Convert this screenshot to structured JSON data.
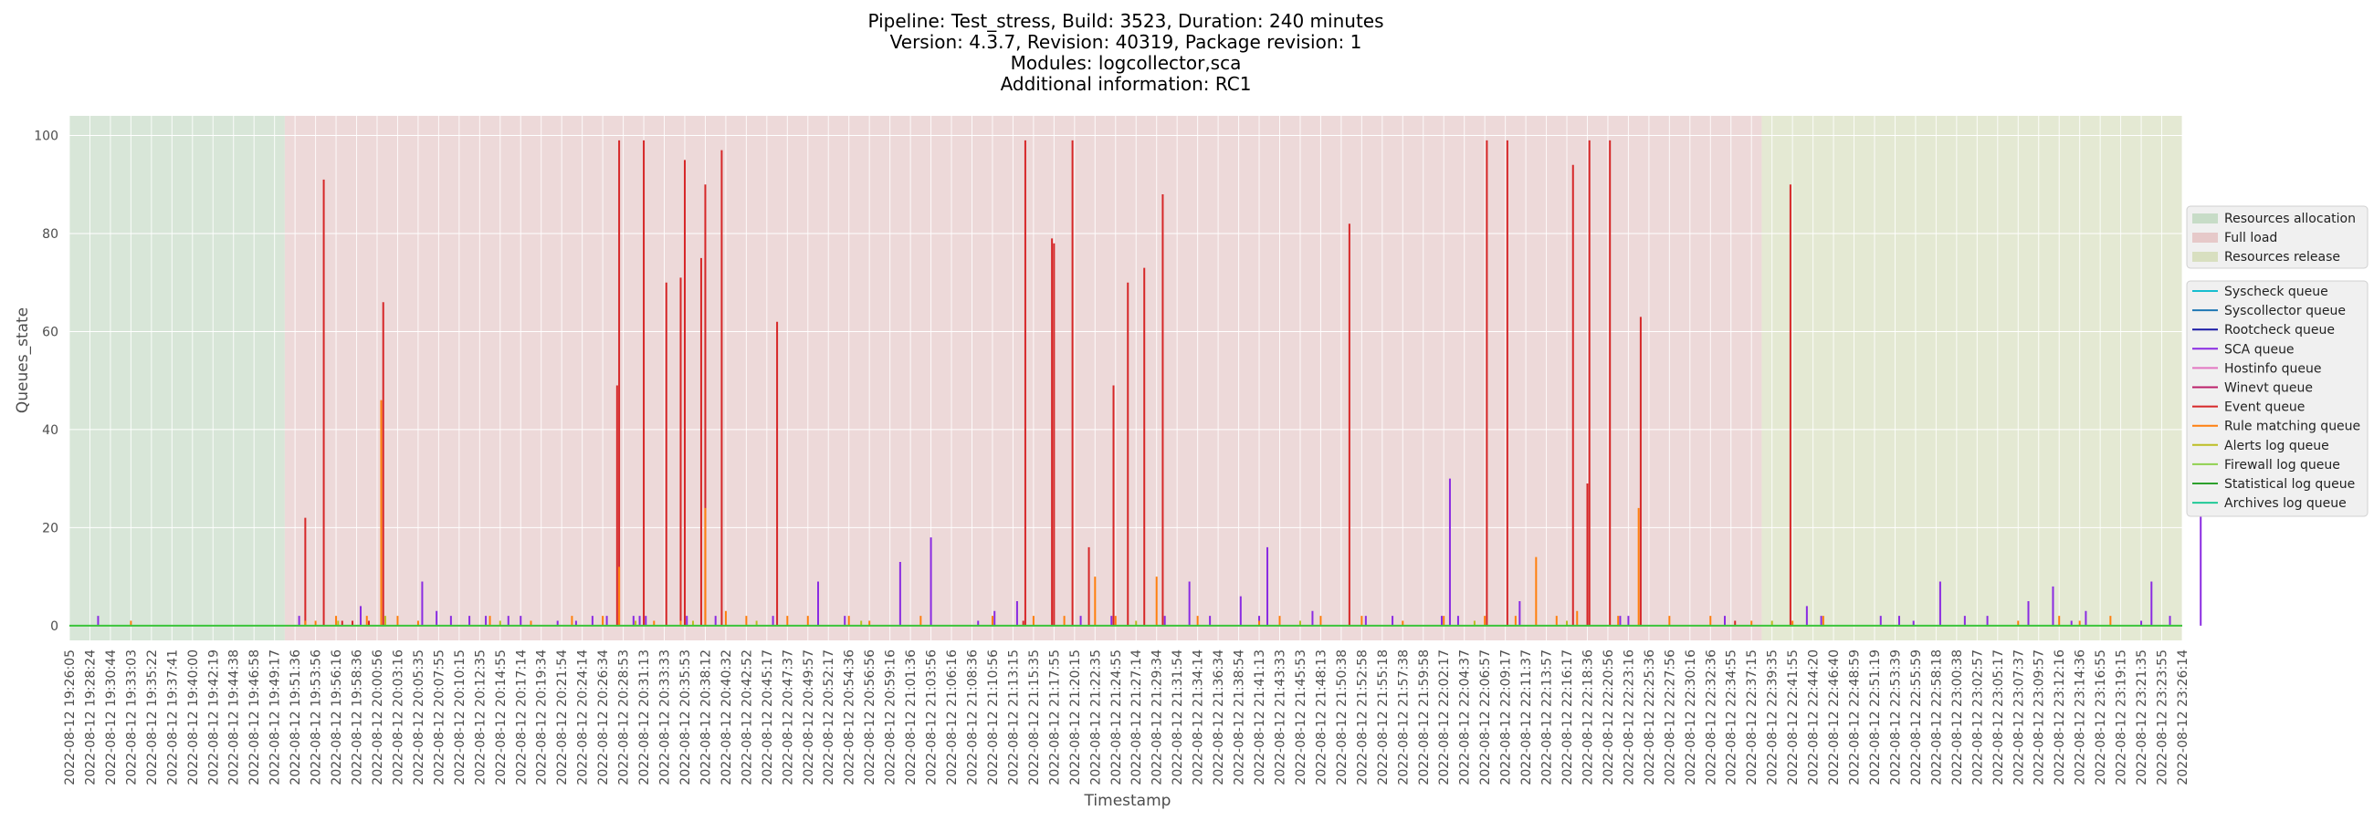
{
  "chart_data": {
    "type": "line",
    "title_lines": [
      "Pipeline: Test_stress, Build: 3523, Duration: 240 minutes",
      "Version: 4.3.7, Revision: 40319, Package revision: 1",
      "Modules: logcollector,sca",
      "Additional information: RC1"
    ],
    "xlabel": "Timestamp",
    "ylabel": "Queues_state",
    "ylim": [
      -3,
      104
    ],
    "yticks": [
      0,
      20,
      40,
      60,
      80,
      100
    ],
    "grid": true,
    "x_ticks": [
      "2022-08-12 19:26:05",
      "2022-08-12 19:28:24",
      "2022-08-12 19:30:44",
      "2022-08-12 19:33:03",
      "2022-08-12 19:35:22",
      "2022-08-12 19:37:41",
      "2022-08-12 19:40:00",
      "2022-08-12 19:42:19",
      "2022-08-12 19:44:38",
      "2022-08-12 19:46:58",
      "2022-08-12 19:49:17",
      "2022-08-12 19:51:36",
      "2022-08-12 19:53:56",
      "2022-08-12 19:56:16",
      "2022-08-12 19:58:36",
      "2022-08-12 20:00:56",
      "2022-08-12 20:03:16",
      "2022-08-12 20:05:35",
      "2022-08-12 20:07:55",
      "2022-08-12 20:10:15",
      "2022-08-12 20:12:35",
      "2022-08-12 20:14:55",
      "2022-08-12 20:17:14",
      "2022-08-12 20:19:34",
      "2022-08-12 20:21:54",
      "2022-08-12 20:24:14",
      "2022-08-12 20:26:34",
      "2022-08-12 20:28:53",
      "2022-08-12 20:31:13",
      "2022-08-12 20:33:33",
      "2022-08-12 20:35:53",
      "2022-08-12 20:38:12",
      "2022-08-12 20:40:32",
      "2022-08-12 20:42:52",
      "2022-08-12 20:45:17",
      "2022-08-12 20:47:37",
      "2022-08-12 20:49:57",
      "2022-08-12 20:52:17",
      "2022-08-12 20:54:36",
      "2022-08-12 20:56:56",
      "2022-08-12 20:59:16",
      "2022-08-12 21:01:36",
      "2022-08-12 21:03:56",
      "2022-08-12 21:06:16",
      "2022-08-12 21:08:36",
      "2022-08-12 21:10:56",
      "2022-08-12 21:13:15",
      "2022-08-12 21:15:35",
      "2022-08-12 21:17:55",
      "2022-08-12 21:20:15",
      "2022-08-12 21:22:35",
      "2022-08-12 21:24:55",
      "2022-08-12 21:27:14",
      "2022-08-12 21:29:34",
      "2022-08-12 21:31:54",
      "2022-08-12 21:34:14",
      "2022-08-12 21:36:34",
      "2022-08-12 21:38:54",
      "2022-08-12 21:41:13",
      "2022-08-12 21:43:33",
      "2022-08-12 21:45:53",
      "2022-08-12 21:48:13",
      "2022-08-12 21:50:38",
      "2022-08-12 21:52:58",
      "2022-08-12 21:55:18",
      "2022-08-12 21:57:38",
      "2022-08-12 21:59:58",
      "2022-08-12 22:02:17",
      "2022-08-12 22:04:37",
      "2022-08-12 22:06:57",
      "2022-08-12 22:09:17",
      "2022-08-12 22:11:37",
      "2022-08-12 22:13:57",
      "2022-08-12 22:16:17",
      "2022-08-12 22:18:36",
      "2022-08-12 22:20:56",
      "2022-08-12 22:23:16",
      "2022-08-12 22:25:36",
      "2022-08-12 22:27:56",
      "2022-08-12 22:30:16",
      "2022-08-12 22:32:36",
      "2022-08-12 22:34:55",
      "2022-08-12 22:37:15",
      "2022-08-12 22:39:35",
      "2022-08-12 22:41:55",
      "2022-08-12 22:44:20",
      "2022-08-12 22:46:40",
      "2022-08-12 22:48:59",
      "2022-08-12 22:51:19",
      "2022-08-12 22:53:39",
      "2022-08-12 22:55:59",
      "2022-08-12 22:58:18",
      "2022-08-12 23:00:38",
      "2022-08-12 23:02:57",
      "2022-08-12 23:05:17",
      "2022-08-12 23:07:37",
      "2022-08-12 23:09:57",
      "2022-08-12 23:12:16",
      "2022-08-12 23:14:36",
      "2022-08-12 23:16:55",
      "2022-08-12 23:19:15",
      "2022-08-12 23:21:35",
      "2022-08-12 23:23:55",
      "2022-08-12 23:26:14"
    ],
    "phases": [
      {
        "name": "Resources allocation",
        "start_tick": 0,
        "end_tick": 10.5,
        "color": "#c7dcc7"
      },
      {
        "name": "Full load",
        "start_tick": 10.5,
        "end_tick": 82.5,
        "color": "#e6c9c9"
      },
      {
        "name": "Resources release",
        "start_tick": 82.5,
        "end_tick": 104,
        "color": "#d8dfc0"
      }
    ],
    "series": [
      {
        "name": "Syscheck queue",
        "color": "#17becf",
        "points": []
      },
      {
        "name": "Syscollector queue",
        "color": "#1f77b4",
        "points": []
      },
      {
        "name": "Rootcheck queue",
        "color": "#1a1aa6",
        "points": []
      },
      {
        "name": "SCA queue",
        "color": "#8a2be2",
        "points": [
          [
            1.4,
            2
          ],
          [
            11.2,
            2
          ],
          [
            14.2,
            4
          ],
          [
            17.2,
            9
          ],
          [
            17.9,
            3
          ],
          [
            18.6,
            2
          ],
          [
            19.5,
            2
          ],
          [
            20.3,
            2
          ],
          [
            21.4,
            2
          ],
          [
            22.0,
            2
          ],
          [
            23.8,
            1
          ],
          [
            24.7,
            1
          ],
          [
            25.5,
            2
          ],
          [
            26.2,
            2
          ],
          [
            27.5,
            2
          ],
          [
            27.8,
            2
          ],
          [
            28.1,
            2
          ],
          [
            30.1,
            2
          ],
          [
            31.5,
            2
          ],
          [
            34.3,
            2
          ],
          [
            36.5,
            9
          ],
          [
            37.8,
            2
          ],
          [
            40.5,
            13
          ],
          [
            42.0,
            18
          ],
          [
            44.3,
            1
          ],
          [
            45.1,
            3
          ],
          [
            46.2,
            5
          ],
          [
            49.3,
            2
          ],
          [
            50.8,
            2
          ],
          [
            53.4,
            2
          ],
          [
            54.6,
            9
          ],
          [
            55.6,
            2
          ],
          [
            57.1,
            6
          ],
          [
            58.0,
            2
          ],
          [
            58.4,
            16
          ],
          [
            60.6,
            3
          ],
          [
            63.2,
            2
          ],
          [
            64.5,
            2
          ],
          [
            66.9,
            2
          ],
          [
            67.3,
            30
          ],
          [
            67.7,
            2
          ],
          [
            70.7,
            5
          ],
          [
            75.6,
            2
          ],
          [
            76.0,
            2
          ],
          [
            80.7,
            2
          ],
          [
            84.7,
            4
          ],
          [
            85.4,
            2
          ],
          [
            88.3,
            2
          ],
          [
            89.2,
            2
          ],
          [
            89.9,
            1
          ],
          [
            91.2,
            9
          ],
          [
            92.4,
            2
          ],
          [
            93.5,
            2
          ],
          [
            95.5,
            5
          ],
          [
            96.7,
            8
          ],
          [
            97.6,
            1
          ],
          [
            98.3,
            3
          ],
          [
            101.0,
            1
          ],
          [
            101.5,
            9
          ],
          [
            102.4,
            2
          ],
          [
            103.9,
            29
          ]
        ]
      },
      {
        "name": "Hostinfo queue",
        "color": "#e377c2",
        "points": []
      },
      {
        "name": "Winevt queue",
        "color": "#bc1f6a",
        "points": []
      },
      {
        "name": "Event queue",
        "color": "#d62728",
        "points": [
          [
            11.5,
            22
          ],
          [
            12.4,
            91
          ],
          [
            13.3,
            1
          ],
          [
            13.8,
            1
          ],
          [
            14.6,
            1
          ],
          [
            15.3,
            66
          ],
          [
            26.7,
            49
          ],
          [
            26.8,
            99
          ],
          [
            28.0,
            99
          ],
          [
            29.1,
            70
          ],
          [
            29.8,
            71
          ],
          [
            30.0,
            95
          ],
          [
            30.8,
            75
          ],
          [
            31.0,
            90
          ],
          [
            31.8,
            97
          ],
          [
            34.5,
            62
          ],
          [
            46.5,
            1
          ],
          [
            46.6,
            99
          ],
          [
            47.9,
            79
          ],
          [
            48.0,
            78
          ],
          [
            48.9,
            99
          ],
          [
            49.7,
            16
          ],
          [
            50.9,
            49
          ],
          [
            51.6,
            70
          ],
          [
            52.4,
            73
          ],
          [
            53.3,
            88
          ],
          [
            62.4,
            82
          ],
          [
            69.1,
            99
          ],
          [
            70.1,
            99
          ],
          [
            73.3,
            94
          ],
          [
            74.0,
            29
          ],
          [
            74.1,
            99
          ],
          [
            75.1,
            99
          ],
          [
            76.6,
            63
          ],
          [
            81.2,
            1
          ],
          [
            83.9,
            90
          ]
        ]
      },
      {
        "name": "Rule matching queue",
        "color": "#ff7f0e",
        "points": [
          [
            3.0,
            1
          ],
          [
            11.5,
            1
          ],
          [
            12.0,
            1
          ],
          [
            13.0,
            2
          ],
          [
            14.5,
            2
          ],
          [
            15.2,
            46
          ],
          [
            16.0,
            2
          ],
          [
            17.0,
            1
          ],
          [
            20.5,
            2
          ],
          [
            22.5,
            1
          ],
          [
            24.5,
            2
          ],
          [
            26.0,
            2
          ],
          [
            26.8,
            12
          ],
          [
            28.5,
            1
          ],
          [
            29.8,
            1
          ],
          [
            31.0,
            24
          ],
          [
            32.0,
            3
          ],
          [
            33.0,
            2
          ],
          [
            35.0,
            2
          ],
          [
            36.0,
            2
          ],
          [
            38.0,
            2
          ],
          [
            39.0,
            1
          ],
          [
            41.5,
            2
          ],
          [
            45.0,
            2
          ],
          [
            47.0,
            2
          ],
          [
            48.5,
            2
          ],
          [
            50.0,
            10
          ],
          [
            51.0,
            2
          ],
          [
            53.0,
            10
          ],
          [
            55.0,
            2
          ],
          [
            58.0,
            1
          ],
          [
            59.0,
            2
          ],
          [
            61.0,
            2
          ],
          [
            63.0,
            2
          ],
          [
            65.0,
            1
          ],
          [
            67.0,
            2
          ],
          [
            69.0,
            2
          ],
          [
            70.5,
            2
          ],
          [
            71.5,
            14
          ],
          [
            72.5,
            2
          ],
          [
            73.5,
            3
          ],
          [
            75.5,
            2
          ],
          [
            76.5,
            24
          ],
          [
            78.0,
            2
          ],
          [
            80.0,
            2
          ],
          [
            82.0,
            1
          ],
          [
            84.0,
            1
          ],
          [
            85.5,
            2
          ],
          [
            95.0,
            1
          ],
          [
            97.0,
            2
          ],
          [
            98.0,
            1
          ],
          [
            99.5,
            2
          ]
        ]
      },
      {
        "name": "Alerts log queue",
        "color": "#bcbd22",
        "points": [
          [
            13.1,
            1
          ],
          [
            15.4,
            2
          ],
          [
            21.0,
            1
          ],
          [
            27.6,
            1
          ],
          [
            30.4,
            1
          ],
          [
            33.5,
            1
          ],
          [
            38.6,
            1
          ],
          [
            52.0,
            1
          ],
          [
            60.0,
            1
          ],
          [
            68.5,
            1
          ],
          [
            73.0,
            1
          ],
          [
            83.0,
            1
          ]
        ]
      },
      {
        "name": "Firewall log queue",
        "color": "#8fd14f",
        "points": []
      },
      {
        "name": "Statistical log queue",
        "color": "#2ca02c",
        "points": []
      },
      {
        "name": "Archives log queue",
        "color": "#20c997",
        "points": []
      }
    ]
  }
}
